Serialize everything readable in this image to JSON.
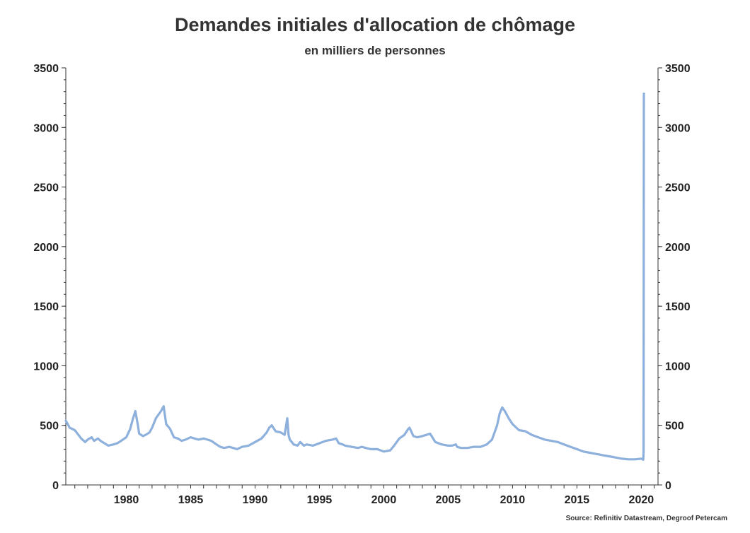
{
  "chart_data": {
    "type": "line",
    "title": "Demandes initiales d'allocation de chômage",
    "subtitle": "en milliers de personnes",
    "source": "Source: Refinitiv Datastream, Degroof Petercam",
    "ylim": [
      0,
      3500
    ],
    "y_ticks": [
      0,
      500,
      1000,
      1500,
      2000,
      2500,
      3000,
      3500
    ],
    "y_ticks_right": [
      0,
      500,
      1000,
      1500,
      2000,
      2500,
      3000,
      3500
    ],
    "xlim": [
      1975.3,
      2021.3
    ],
    "x_ticks": [
      1980,
      1985,
      1990,
      1995,
      2000,
      2005,
      2010,
      2015,
      2020
    ],
    "grid": false,
    "series_color": "#8eb0dc",
    "series": [
      {
        "x": [
          1975.3,
          1975.6,
          1976.0,
          1976.5,
          1976.8,
          1977.0,
          1977.3,
          1977.5,
          1977.8,
          1978.0,
          1978.3,
          1978.6,
          1979.0,
          1979.3,
          1979.6,
          1980.0,
          1980.3,
          1980.5,
          1980.7,
          1980.9,
          1981.0,
          1981.3,
          1981.5,
          1981.8,
          1982.0,
          1982.3,
          1982.5,
          1982.7,
          1982.9,
          1983.1,
          1983.4,
          1983.7,
          1984.0,
          1984.3,
          1984.6,
          1985.0,
          1985.3,
          1985.6,
          1986.0,
          1986.3,
          1986.6,
          1987.0,
          1987.3,
          1987.6,
          1988.0,
          1988.3,
          1988.6,
          1989.0,
          1989.5,
          1990.0,
          1990.5,
          1990.9,
          1991.1,
          1991.3,
          1991.6,
          1992.0,
          1992.3,
          1992.5,
          1992.6,
          1992.7,
          1993.0,
          1993.3,
          1993.5,
          1993.8,
          1994.0,
          1994.5,
          1995.0,
          1995.5,
          1996.0,
          1996.3,
          1996.5,
          1996.8,
          1997.0,
          1997.5,
          1998.0,
          1998.3,
          1998.6,
          1999.0,
          1999.5,
          2000.0,
          2000.5,
          2000.8,
          2001.2,
          2001.6,
          2001.9,
          2002.0,
          2002.3,
          2002.6,
          2003.0,
          2003.3,
          2003.6,
          2004.0,
          2004.5,
          2005.0,
          2005.3,
          2005.6,
          2005.7,
          2006.0,
          2006.5,
          2007.0,
          2007.5,
          2008.0,
          2008.4,
          2008.8,
          2009.0,
          2009.2,
          2009.4,
          2009.7,
          2010.0,
          2010.5,
          2011.0,
          2011.5,
          2012.0,
          2012.5,
          2013.0,
          2013.5,
          2014.0,
          2014.5,
          2015.0,
          2015.5,
          2016.0,
          2016.5,
          2017.0,
          2017.5,
          2018.0,
          2018.5,
          2019.0,
          2019.5,
          2020.0,
          2020.15,
          2020.18,
          2020.2,
          2020.22
        ],
        "values": [
          540,
          480,
          460,
          390,
          360,
          380,
          400,
          370,
          390,
          370,
          350,
          330,
          340,
          350,
          370,
          400,
          470,
          550,
          620,
          500,
          430,
          410,
          420,
          440,
          480,
          560,
          590,
          620,
          660,
          510,
          470,
          400,
          390,
          370,
          380,
          400,
          390,
          380,
          390,
          380,
          370,
          340,
          320,
          310,
          320,
          310,
          300,
          320,
          330,
          360,
          390,
          440,
          480,
          500,
          450,
          440,
          420,
          560,
          420,
          380,
          340,
          330,
          360,
          330,
          340,
          330,
          350,
          370,
          380,
          390,
          350,
          340,
          330,
          320,
          310,
          320,
          310,
          300,
          300,
          280,
          290,
          330,
          390,
          420,
          470,
          480,
          410,
          400,
          410,
          420,
          430,
          360,
          340,
          330,
          330,
          340,
          320,
          310,
          310,
          320,
          320,
          340,
          380,
          500,
          600,
          650,
          620,
          560,
          510,
          460,
          450,
          420,
          400,
          380,
          370,
          360,
          340,
          320,
          300,
          280,
          270,
          260,
          250,
          240,
          230,
          220,
          215,
          215,
          220,
          211,
          280,
          3283,
          3283
        ]
      }
    ]
  }
}
